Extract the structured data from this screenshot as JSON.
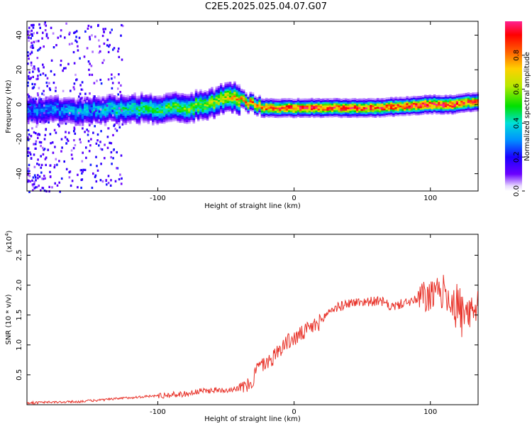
{
  "page": {
    "title": "C2E5.2025.025.04.07.G07"
  },
  "colors": {
    "snr_line": "#e8332a",
    "colormap": [
      "#ffffff",
      "#6b00ff",
      "#0000ff",
      "#00b4ff",
      "#00e8c8",
      "#00e000",
      "#d8e000",
      "#ff8000",
      "#ff0000",
      "#ff0080"
    ]
  },
  "chart_data": [
    {
      "type": "heatmap",
      "xlabel": "Height of straight line (km)",
      "ylabel": "Frequency (Hz)",
      "xlim": [
        -196,
        135
      ],
      "ylim": [
        -50,
        48
      ],
      "x_ticks": [
        -100,
        0,
        100
      ],
      "y_ticks": [
        -40,
        -20,
        0,
        20,
        40
      ],
      "colorbar": {
        "label": "Normalized spectral amplitude",
        "range": [
          0.0,
          1.0
        ],
        "ticks": [
          "0.0",
          "0.2",
          "0.4",
          "0.6",
          "0.8"
        ]
      },
      "ridge": {
        "x": [
          -196,
          -180,
          -160,
          -140,
          -120,
          -100,
          -80,
          -60,
          -50,
          -45,
          -40,
          -30,
          -20,
          -10,
          0,
          20,
          40,
          60,
          80,
          100,
          115,
          125,
          135
        ],
        "freq": [
          -4,
          -3,
          -4,
          -3,
          -2,
          -3,
          -2,
          1,
          4,
          5,
          3,
          0,
          -2,
          -2,
          -2,
          -2,
          -2,
          -2,
          -1,
          0,
          0,
          1,
          2
        ],
        "amplitude": [
          0.3,
          0.3,
          0.35,
          0.4,
          0.45,
          0.5,
          0.55,
          0.6,
          0.65,
          0.7,
          0.75,
          0.8,
          0.85,
          0.85,
          0.9,
          0.92,
          0.9,
          0.88,
          0.9,
          0.95,
          0.92,
          0.9,
          0.85
        ]
      }
    },
    {
      "type": "line",
      "xlabel": "Height of straight line (km)",
      "ylabel": "SNR (10 * v/v)",
      "y_multiplier": "(x10^4)",
      "xlim": [
        -196,
        135
      ],
      "ylim": [
        0,
        2.85
      ],
      "x_ticks": [
        -100,
        0,
        100
      ],
      "y_ticks": [
        "0.5",
        "1.0",
        "1.5",
        "2.0",
        "2.5"
      ],
      "series": [
        {
          "x": [
            -196,
            -180,
            -160,
            -140,
            -120,
            -100,
            -80,
            -70,
            -60,
            -50,
            -40,
            -35,
            -30,
            -28,
            -25,
            -20,
            -15,
            -10,
            -5,
            0,
            10,
            20,
            25,
            30,
            35,
            40,
            50,
            60,
            65,
            70,
            75,
            80,
            90,
            95,
            100,
            110,
            115,
            120,
            125,
            130,
            135
          ],
          "y": [
            0.03,
            0.04,
            0.05,
            0.08,
            0.12,
            0.15,
            0.18,
            0.22,
            0.24,
            0.25,
            0.28,
            0.3,
            0.4,
            0.6,
            0.65,
            0.7,
            0.8,
            0.95,
            1.05,
            1.1,
            1.25,
            1.4,
            1.55,
            1.62,
            1.65,
            1.7,
            1.72,
            1.73,
            1.72,
            1.65,
            1.65,
            1.7,
            1.75,
            1.8,
            1.8,
            1.9,
            1.75,
            1.65,
            1.45,
            1.5,
            1.6
          ]
        }
      ]
    }
  ]
}
